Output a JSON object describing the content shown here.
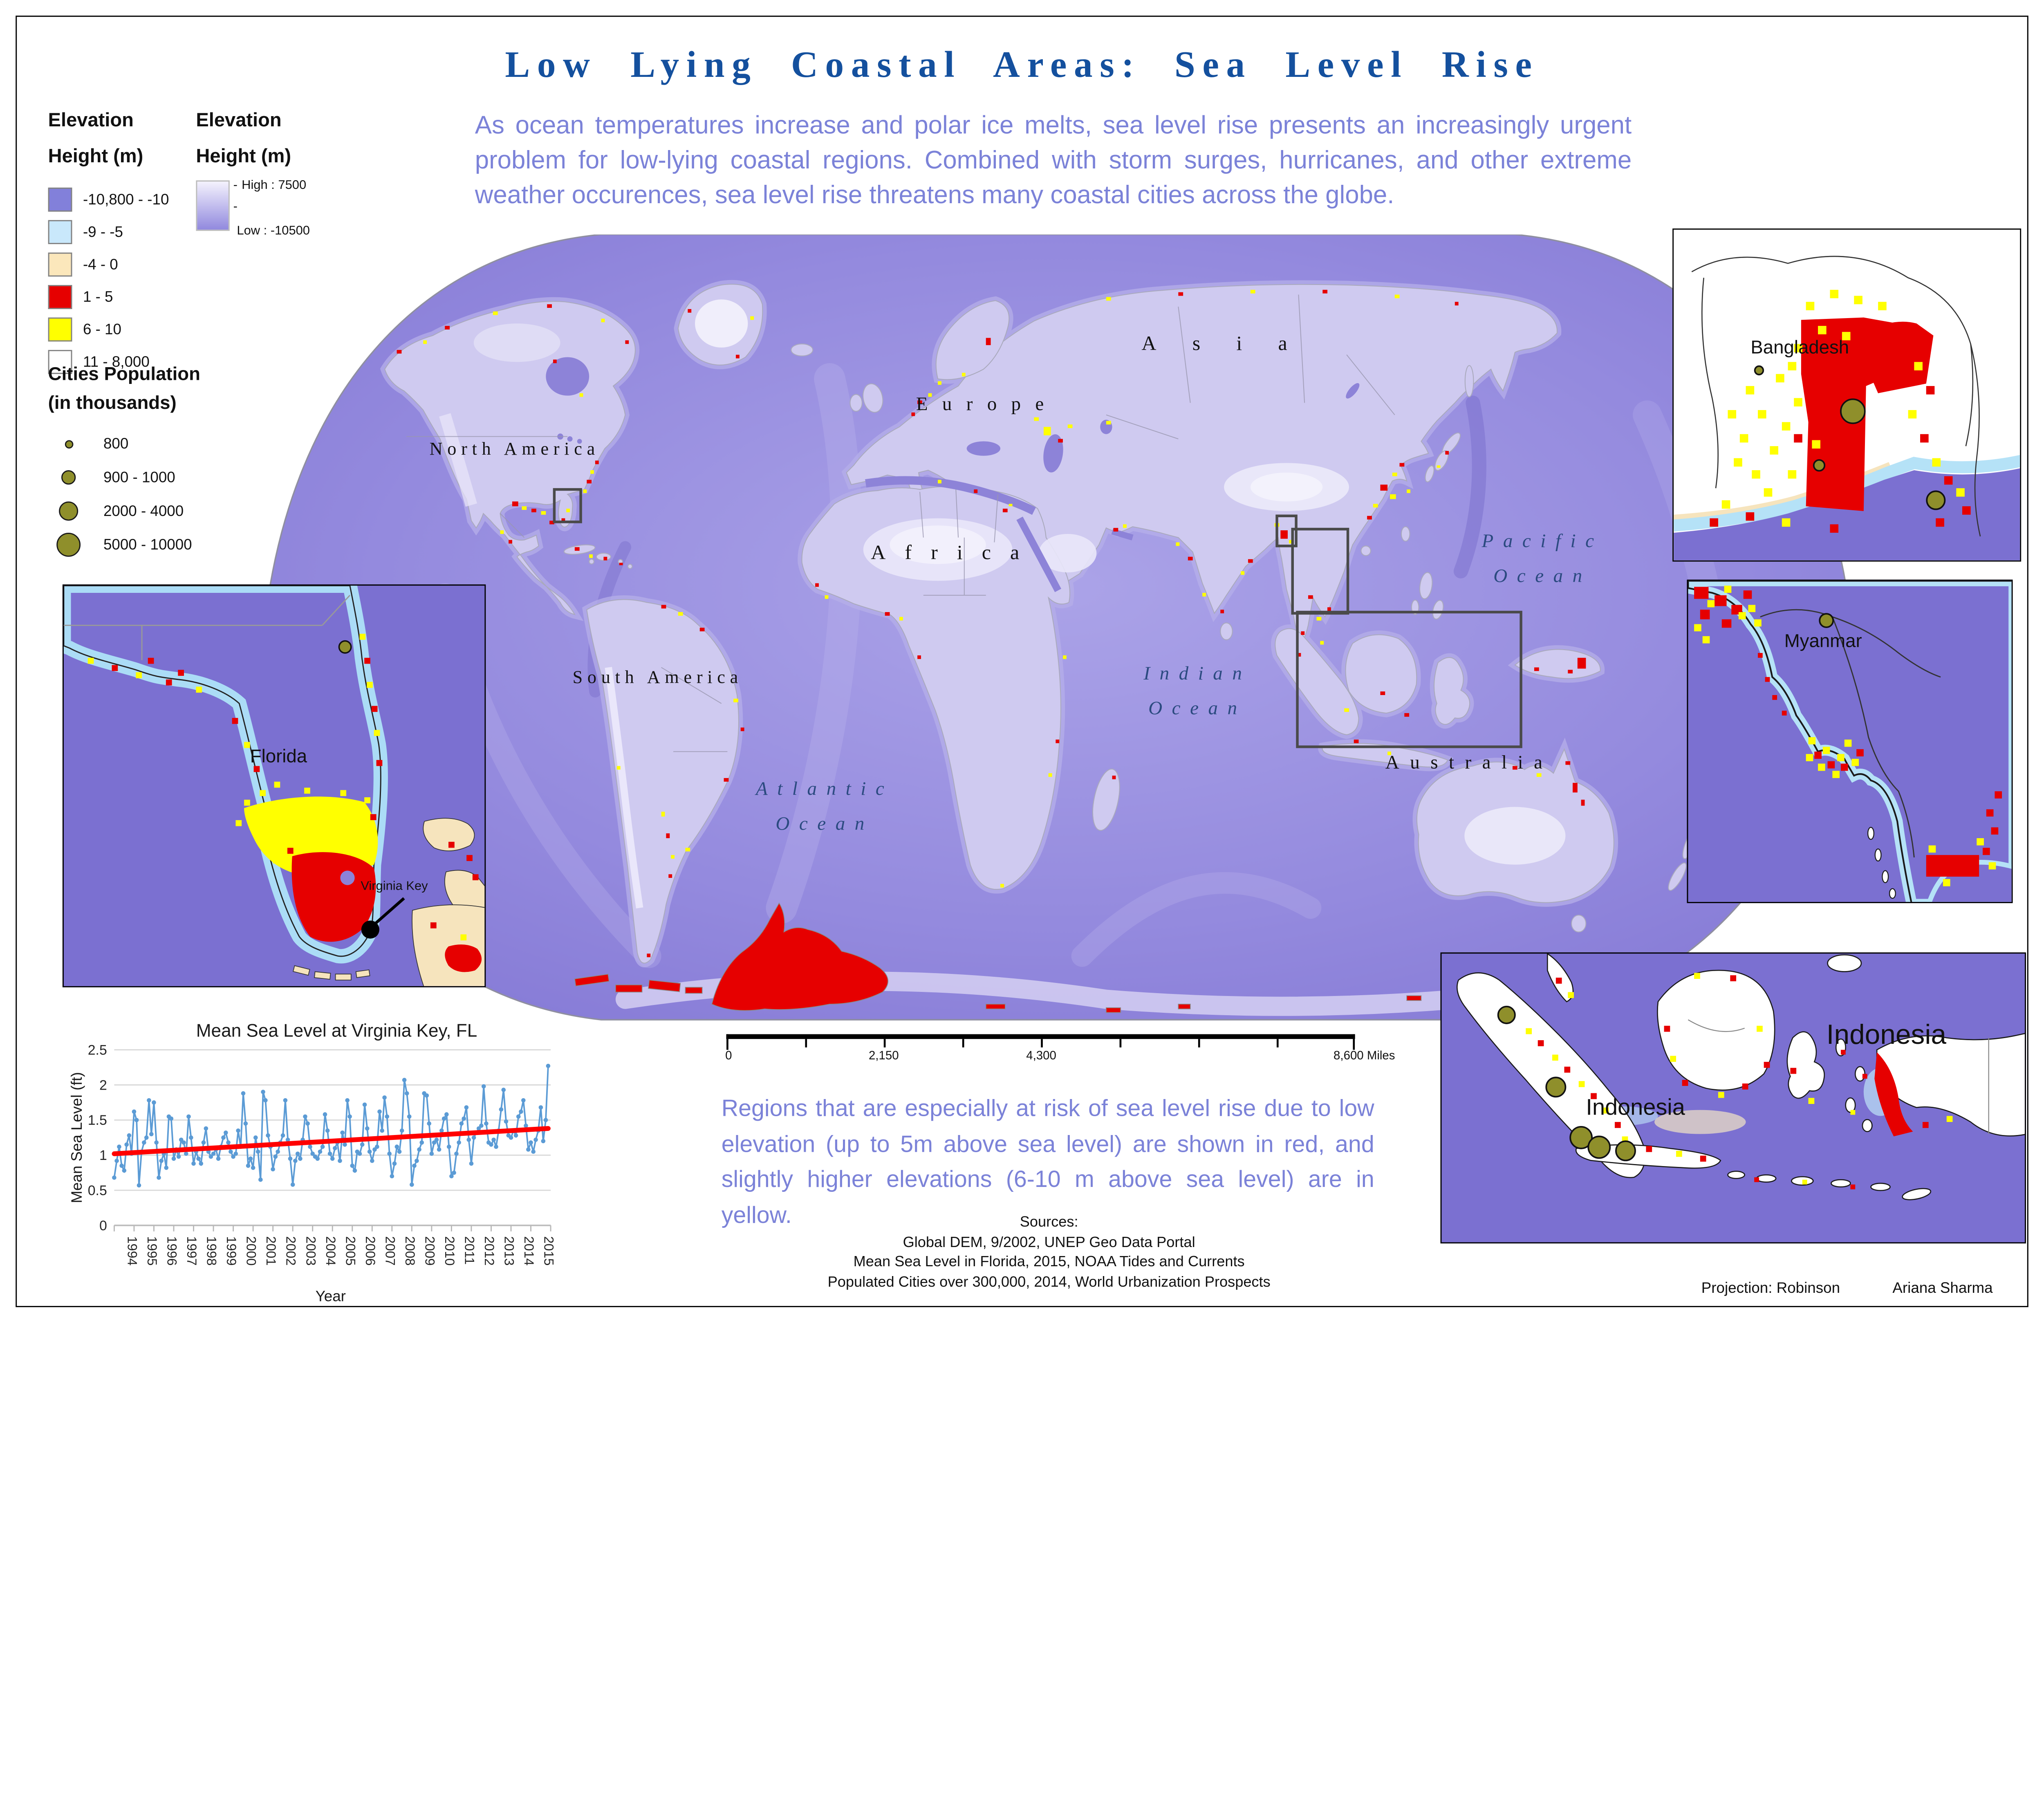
{
  "poster": {
    "title": "Low Lying Coastal Areas: Sea Level Rise",
    "intro": "As ocean temperatures increase and polar ice melts, sea level rise presents an increasingly urgent problem for low-lying coastal regions. Combined with storm surges, hurricanes, and other extreme weather occurences, sea level rise threatens many coastal cities across the globe.",
    "note": "Regions that are especially at risk of sea level rise due to low elevation (up to 5m above sea level) are shown in red, and slightly higher elevations (6-10 m above sea level) are in yellow.",
    "sources_heading": "Sources:",
    "sources": [
      "Global DEM, 9/2002, UNEP Geo Data Portal",
      "Mean Sea Level in Florida, 2015, NOAA Tides and Currents",
      "Populated Cities over 300,000, 2014, World Urbanization Prospects"
    ],
    "projection": "Projection: Robinson",
    "author": "Ariana Sharma",
    "title_color": "#14509e",
    "body_text_color": "#7b82d8"
  },
  "legend_elevation": {
    "title_line1": "Elevation",
    "title_line2": "Height (m)",
    "classes": [
      {
        "label": "-10,800 - -10",
        "color": "#8280da"
      },
      {
        "label": "-9 - -5",
        "color": "#c9e8fb"
      },
      {
        "label": "-4 - 0",
        "color": "#fbe7bb"
      },
      {
        "label": "1 - 5",
        "color": "#e60000"
      },
      {
        "label": "6 - 10",
        "color": "#ffff00"
      },
      {
        "label": "11 - 8,000",
        "color": "#ffffff"
      }
    ]
  },
  "legend_raster": {
    "title_line1": "Elevation",
    "title_line2": "Height (m)",
    "high_label": "High : 7500",
    "low_label": "Low : -10500",
    "gradient_top": "#f4f2fd",
    "gradient_bottom": "#9189de"
  },
  "legend_cities": {
    "title_line1": "Cities Population",
    "title_line2": "(in thousands)",
    "marker_color": "#8f8f2b",
    "classes": [
      {
        "label": "800",
        "radius": 3.5
      },
      {
        "label": "900 - 1000",
        "radius": 6
      },
      {
        "label": "2000 - 4000",
        "radius": 8
      },
      {
        "label": "5000 - 10000",
        "radius": 10
      }
    ]
  },
  "world_map": {
    "continent_labels": {
      "north_america": "North America",
      "south_america": "South America",
      "europe": "Europe",
      "asia": "Asia",
      "africa": "Africa",
      "australia": "Australia"
    },
    "ocean_labels": {
      "pacific": [
        "Pacific",
        "Ocean"
      ],
      "indian": [
        "Indian",
        "Ocean"
      ],
      "atlantic": [
        "Atlantic",
        "Ocean"
      ]
    },
    "scale_bar": {
      "tick_labels": [
        "0",
        "2,150",
        "4,300"
      ],
      "end_label": "8,600 Miles"
    }
  },
  "insets": {
    "florida": {
      "label": "Florida",
      "marker_label": "Virginia Key"
    },
    "bangladesh": {
      "label": "Bangladesh"
    },
    "myanmar": {
      "label": "Myanmar"
    },
    "indonesia": {
      "label_west": "Indonesia",
      "label_east": "Indonesia"
    }
  },
  "chart_data": {
    "type": "line",
    "title": "Mean Sea Level at Virginia Key, FL",
    "xlabel": "Year",
    "ylabel": "Mean Sea Level (ft)",
    "ylim": [
      0,
      2.5
    ],
    "y_ticks": [
      "0",
      "0.5",
      "1",
      "1.5",
      "2",
      "2.5"
    ],
    "grid": true,
    "x_start_year": 1994,
    "points_per_year": 8,
    "year_labels": [
      "1994",
      "1995",
      "1996",
      "1997",
      "1998",
      "1999",
      "2000",
      "2001",
      "2002",
      "2003",
      "2004",
      "2005",
      "2006",
      "2007",
      "2008",
      "2009",
      "2010",
      "2011",
      "2012",
      "2013",
      "2014",
      "2015"
    ],
    "line_color": "#5b9bd5",
    "values": [
      0.68,
      0.92,
      1.12,
      0.85,
      0.78,
      1.15,
      1.28,
      1.02,
      1.62,
      1.5,
      0.57,
      1.05,
      1.18,
      1.25,
      1.78,
      1.3,
      1.75,
      1.18,
      0.68,
      0.92,
      1.02,
      0.82,
      1.55,
      1.52,
      0.95,
      1.08,
      0.98,
      1.22,
      1.18,
      1.02,
      1.55,
      1.25,
      0.88,
      1.05,
      0.95,
      0.88,
      1.18,
      1.38,
      1.05,
      0.98,
      1.02,
      1.08,
      0.95,
      1.12,
      1.25,
      1.32,
      1.18,
      1.05,
      0.98,
      1.02,
      1.35,
      1.12,
      1.88,
      1.45,
      0.85,
      0.95,
      0.82,
      1.25,
      1.05,
      0.65,
      1.9,
      1.78,
      1.28,
      1.12,
      0.8,
      0.98,
      1.05,
      1.18,
      1.28,
      1.78,
      1.22,
      0.95,
      0.58,
      0.92,
      1.02,
      0.95,
      1.22,
      1.55,
      1.45,
      1.12,
      1.02,
      0.98,
      0.95,
      1.05,
      1.12,
      1.58,
      1.35,
      1.02,
      0.95,
      1.1,
      1.18,
      0.92,
      1.32,
      1.15,
      1.78,
      1.55,
      0.85,
      0.78,
      1.05,
      1.02,
      1.15,
      1.72,
      1.38,
      1.05,
      0.92,
      1.08,
      1.12,
      1.62,
      1.35,
      1.82,
      1.55,
      1.02,
      0.7,
      0.88,
      1.12,
      1.05,
      1.35,
      2.07,
      1.88,
      1.55,
      0.58,
      0.85,
      0.92,
      1.08,
      1.18,
      1.88,
      1.85,
      1.45,
      1.02,
      1.18,
      1.22,
      1.08,
      1.35,
      1.52,
      1.58,
      1.12,
      0.7,
      0.75,
      1.02,
      1.18,
      1.45,
      1.52,
      1.68,
      1.22,
      0.88,
      1.25,
      1.32,
      1.38,
      1.42,
      1.98,
      1.45,
      1.18,
      1.15,
      1.22,
      1.12,
      1.35,
      1.65,
      1.93,
      1.48,
      1.28,
      1.25,
      1.35,
      1.28,
      1.55,
      1.62,
      1.78,
      1.42,
      1.08,
      1.18,
      1.05,
      1.22,
      1.35,
      1.68,
      1.2,
      1.5,
      2.27
    ],
    "trend": {
      "start_value": 1.02,
      "end_value": 1.38,
      "color": "#ff0000"
    }
  }
}
